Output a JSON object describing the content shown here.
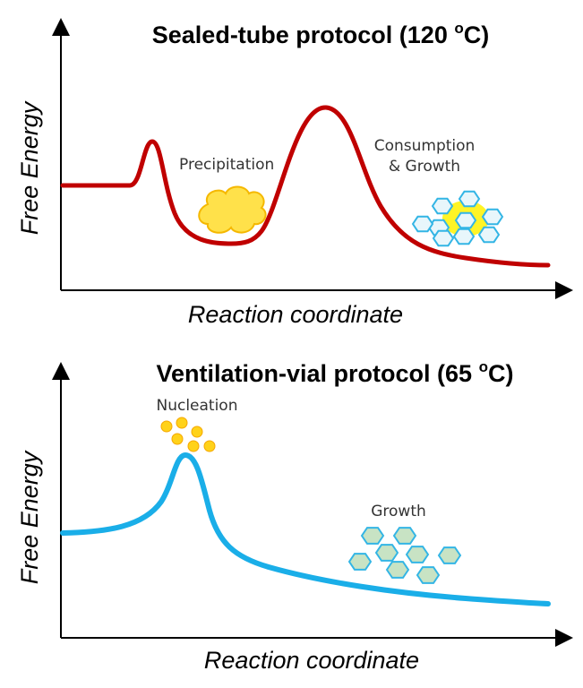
{
  "panels": {
    "top": {
      "title_main": "Sealed-tube protocol (120 ",
      "title_sup": "o",
      "title_end": "C)",
      "ylabel": "Free Energy",
      "xlabel": "Reaction coordinate",
      "curve_color": "#c00000",
      "annotations": {
        "precipitation": "Precipitation",
        "consumption_1": "Consumption",
        "consumption_2": "& Growth"
      }
    },
    "bottom": {
      "title_main": "Ventilation-vial protocol (65 ",
      "title_sup": "o",
      "title_end": "C)",
      "ylabel": "Free Energy",
      "xlabel": "Reaction coordinate",
      "curve_color": "#1aaee8",
      "annotations": {
        "nucleation": "Nucleation",
        "growth": "Growth"
      }
    }
  },
  "colors": {
    "cloud_fill": "#ffe14a",
    "cloud_stroke": "#f5b800",
    "hex_outline": "#33b5e5",
    "hex_fill_top": "#e8f6fb",
    "hex_glow": "#fff200",
    "hex_fill_bottom": "#c8e3c4",
    "dot_fill": "#ffd21a",
    "dot_stroke": "#f5a800"
  }
}
